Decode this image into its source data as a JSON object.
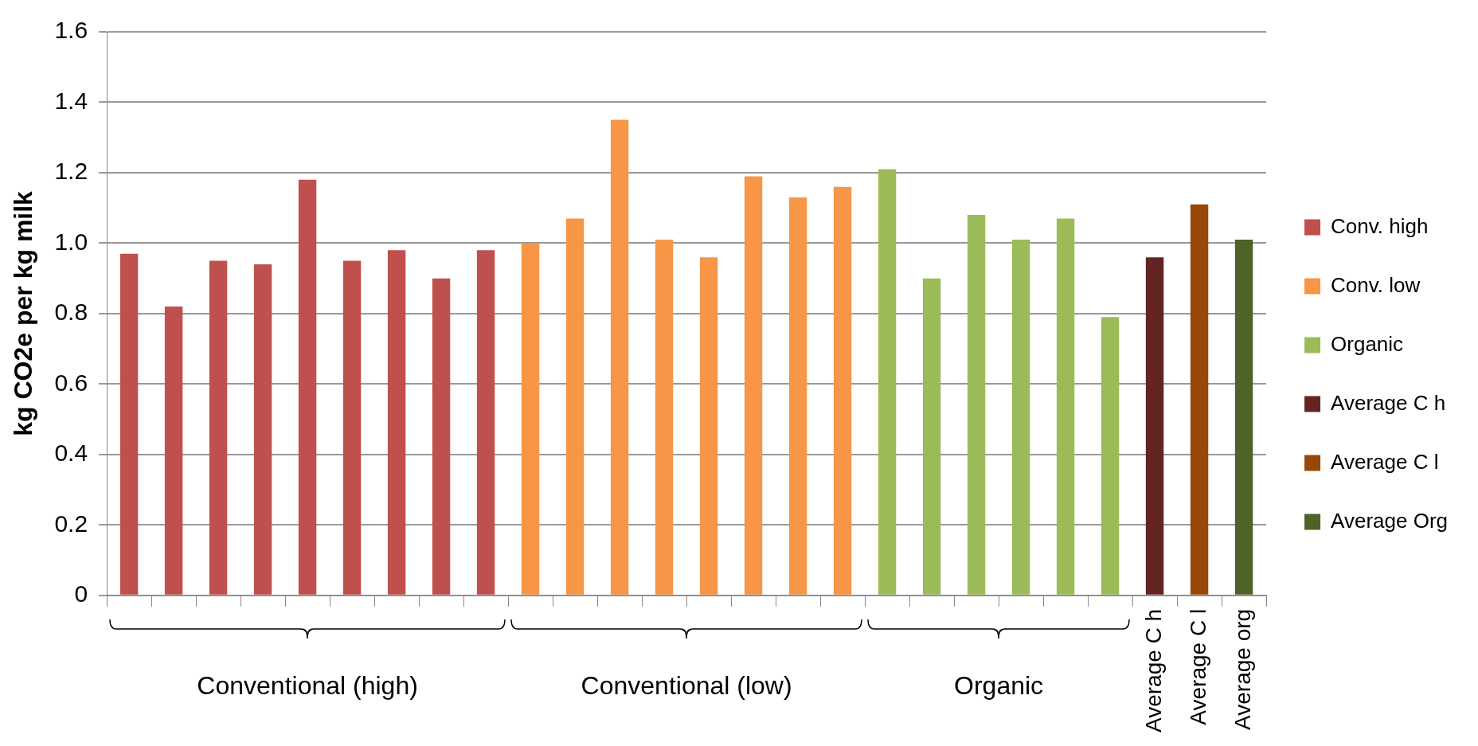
{
  "chart_data": {
    "type": "bar",
    "ylabel": "kg CO2e per kg milk",
    "categories": [
      null,
      null,
      null,
      null,
      null,
      null,
      null,
      null,
      null,
      null,
      null,
      null,
      null,
      null,
      null,
      null,
      null,
      null,
      null,
      null,
      null,
      null,
      null,
      "Average C h",
      "Average C l",
      "Average org"
    ],
    "series": [
      {
        "name": "Conv. high",
        "color": "#c0504d",
        "values": [
          0.97,
          0.82,
          0.95,
          0.94,
          1.18,
          0.95,
          0.98,
          0.9,
          0.98,
          null,
          null,
          null,
          null,
          null,
          null,
          null,
          null,
          null,
          null,
          null,
          null,
          null,
          null,
          null,
          null,
          null
        ]
      },
      {
        "name": "Conv. low",
        "color": "#f79646",
        "values": [
          null,
          null,
          null,
          null,
          null,
          null,
          null,
          null,
          null,
          1.0,
          1.07,
          1.35,
          1.01,
          0.96,
          1.19,
          1.13,
          1.16,
          null,
          null,
          null,
          null,
          null,
          null,
          null,
          null,
          null
        ]
      },
      {
        "name": "Organic",
        "color": "#9bbb59",
        "values": [
          null,
          null,
          null,
          null,
          null,
          null,
          null,
          null,
          null,
          null,
          null,
          null,
          null,
          null,
          null,
          null,
          null,
          1.21,
          0.9,
          1.08,
          1.01,
          1.07,
          0.79,
          null,
          null,
          null
        ]
      },
      {
        "name": "Average C h",
        "color": "#632423",
        "values": [
          null,
          null,
          null,
          null,
          null,
          null,
          null,
          null,
          null,
          null,
          null,
          null,
          null,
          null,
          null,
          null,
          null,
          null,
          null,
          null,
          null,
          null,
          null,
          0.96,
          null,
          null
        ]
      },
      {
        "name": "Average C l",
        "color": "#974806",
        "values": [
          null,
          null,
          null,
          null,
          null,
          null,
          null,
          null,
          null,
          null,
          null,
          null,
          null,
          null,
          null,
          null,
          null,
          null,
          null,
          null,
          null,
          null,
          null,
          null,
          1.11,
          null
        ]
      },
      {
        "name": "Average Org",
        "color": "#4f6228",
        "values": [
          null,
          null,
          null,
          null,
          null,
          null,
          null,
          null,
          null,
          null,
          null,
          null,
          null,
          null,
          null,
          null,
          null,
          null,
          null,
          null,
          null,
          null,
          null,
          null,
          null,
          1.01
        ]
      }
    ],
    "annotations": [
      "Conventional (high)",
      "Conventional (low)",
      "Organic"
    ],
    "ylim": [
      0,
      1.6
    ],
    "yticks": [
      0,
      0.2,
      0.4,
      0.6,
      0.8,
      {
        "value": 1.0,
        "label": "1.0"
      },
      1.2,
      1.4,
      1.6
    ],
    "grid": "y",
    "legend": "right"
  }
}
